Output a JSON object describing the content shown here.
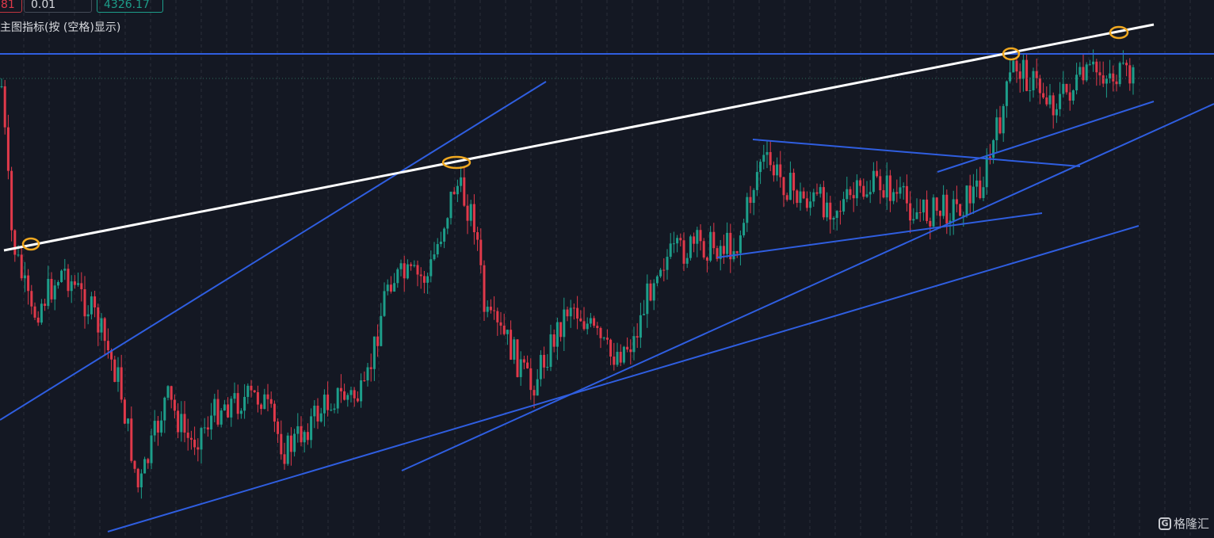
{
  "toolbar": {
    "field_1": "81",
    "field_2": "0.01",
    "field_3": "4326.17"
  },
  "indicator_hint": "主图指标(按 (空格)显示)",
  "watermark": "格隆汇"
}
